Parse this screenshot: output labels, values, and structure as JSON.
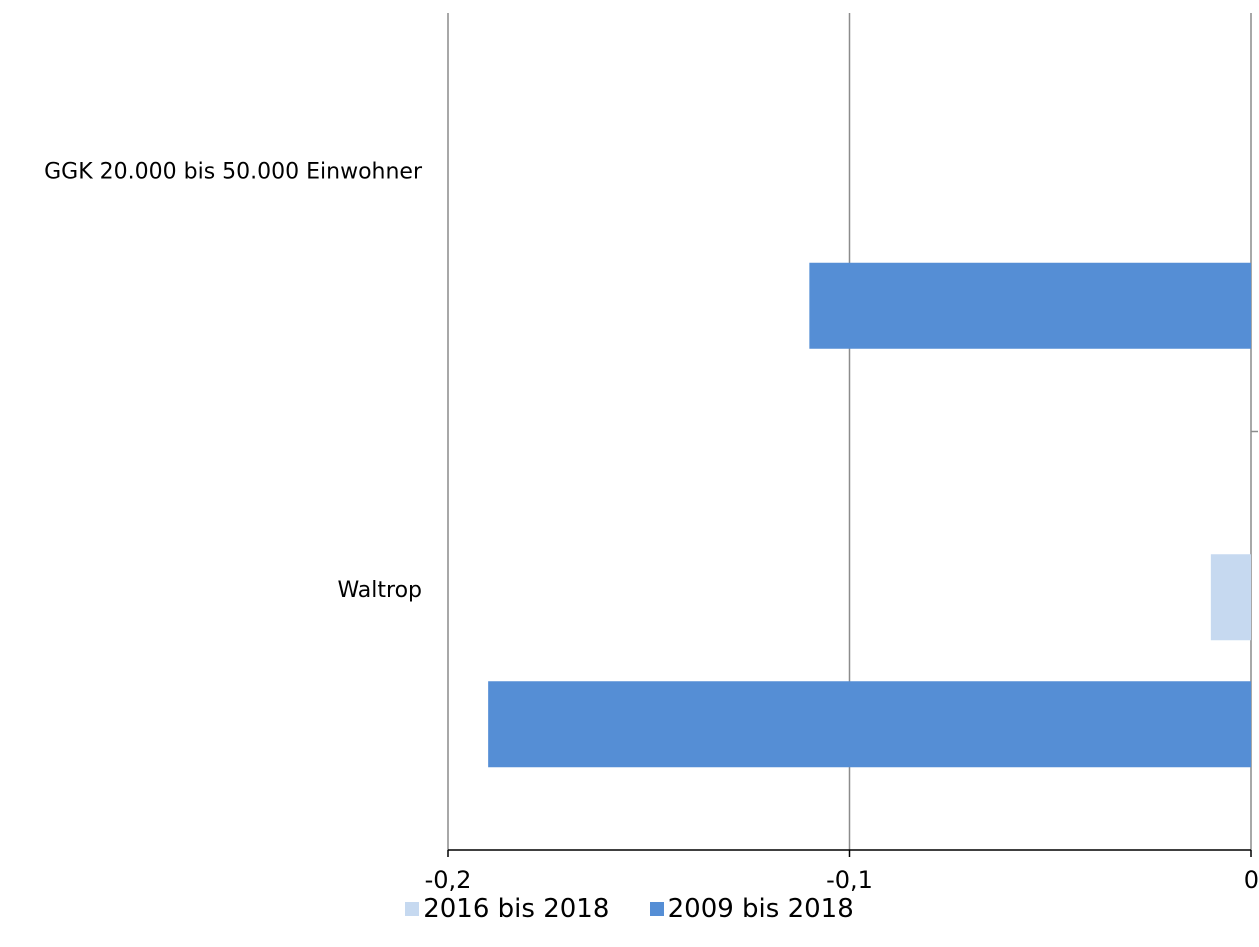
{
  "chart_data": {
    "type": "bar",
    "orientation": "horizontal",
    "categories": [
      "GGK 20.000 bis 50.000 Einwohner",
      "Waltrop"
    ],
    "series": [
      {
        "name": "2016 bis 2018",
        "color": "#c6d9f0",
        "values": [
          0,
          -0.01
        ]
      },
      {
        "name": "2009 bis 2018",
        "color": "#558ed5",
        "values": [
          -0.11,
          -0.19
        ]
      }
    ],
    "xlim": [
      -0.2,
      0
    ],
    "xticks": [
      -0.2,
      -0.1,
      0
    ],
    "xtick_labels": [
      "-0,2",
      "-0,1",
      "0"
    ],
    "grid": "vertical",
    "legend_position": "bottom",
    "title": "",
    "xlabel": "",
    "ylabel": ""
  }
}
